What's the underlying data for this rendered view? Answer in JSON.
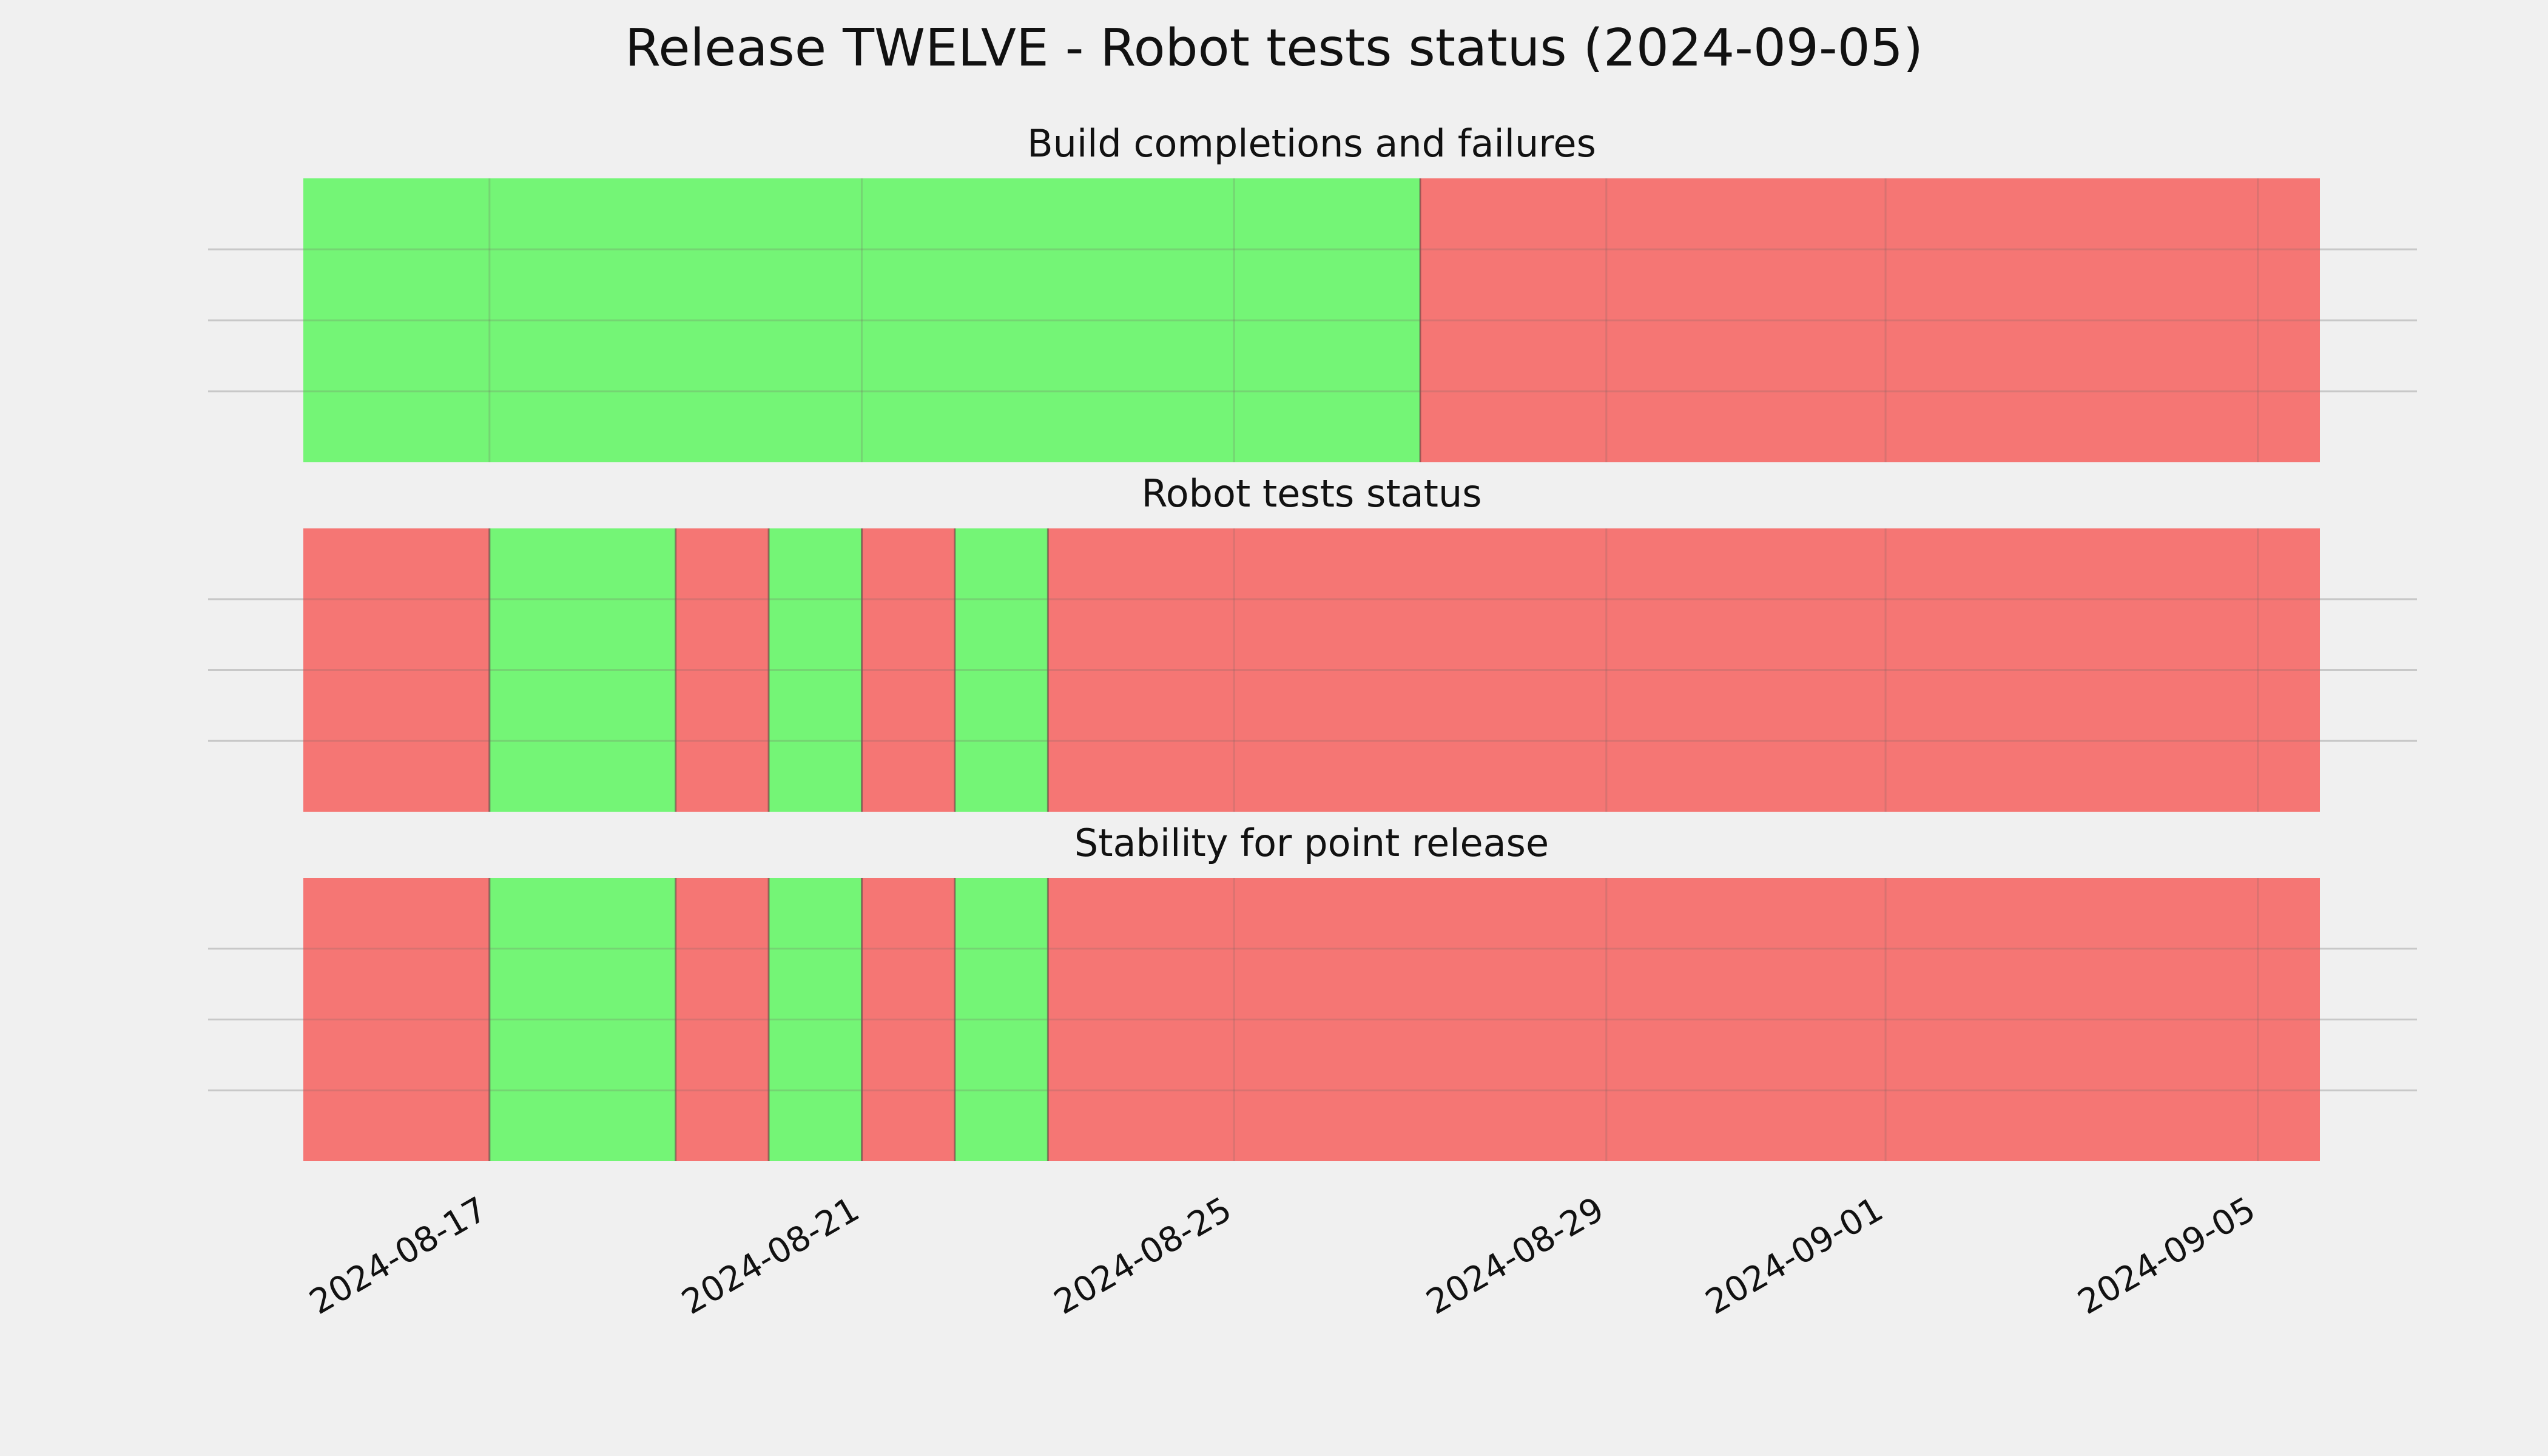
{
  "chart_data": {
    "type": "timeline",
    "title": "Release TWELVE - Robot tests status (2024-09-05)",
    "x_axis": {
      "type": "date",
      "range": [
        "2024-08-15",
        "2024-09-05T16:00"
      ],
      "ticks": [
        "2024-08-17",
        "2024-08-21",
        "2024-08-25",
        "2024-08-29",
        "2024-09-01",
        "2024-09-05"
      ]
    },
    "grid": true,
    "status_colors": {
      "pass": "#74f576",
      "fail": "#f57674"
    },
    "panels": [
      {
        "title": "Build completions and failures",
        "segments": [
          {
            "start": "2024-08-15",
            "end": "2024-08-27",
            "status": "pass"
          },
          {
            "start": "2024-08-27",
            "end": "2024-09-05T16:00",
            "status": "fail"
          }
        ]
      },
      {
        "title": "Robot tests status",
        "segments": [
          {
            "start": "2024-08-15",
            "end": "2024-08-17",
            "status": "fail"
          },
          {
            "start": "2024-08-17",
            "end": "2024-08-19",
            "status": "pass"
          },
          {
            "start": "2024-08-19",
            "end": "2024-08-20",
            "status": "fail"
          },
          {
            "start": "2024-08-20",
            "end": "2024-08-21",
            "status": "pass"
          },
          {
            "start": "2024-08-21",
            "end": "2024-08-22",
            "status": "fail"
          },
          {
            "start": "2024-08-22",
            "end": "2024-08-23",
            "status": "pass"
          },
          {
            "start": "2024-08-23",
            "end": "2024-09-05T16:00",
            "status": "fail"
          }
        ]
      },
      {
        "title": "Stability for point release",
        "segments": [
          {
            "start": "2024-08-15",
            "end": "2024-08-17",
            "status": "fail"
          },
          {
            "start": "2024-08-17",
            "end": "2024-08-19",
            "status": "pass"
          },
          {
            "start": "2024-08-19",
            "end": "2024-08-20",
            "status": "fail"
          },
          {
            "start": "2024-08-20",
            "end": "2024-08-21",
            "status": "pass"
          },
          {
            "start": "2024-08-21",
            "end": "2024-08-22",
            "status": "fail"
          },
          {
            "start": "2024-08-22",
            "end": "2024-08-23",
            "status": "pass"
          },
          {
            "start": "2024-08-23",
            "end": "2024-09-05T16:00",
            "status": "fail"
          }
        ]
      }
    ]
  }
}
